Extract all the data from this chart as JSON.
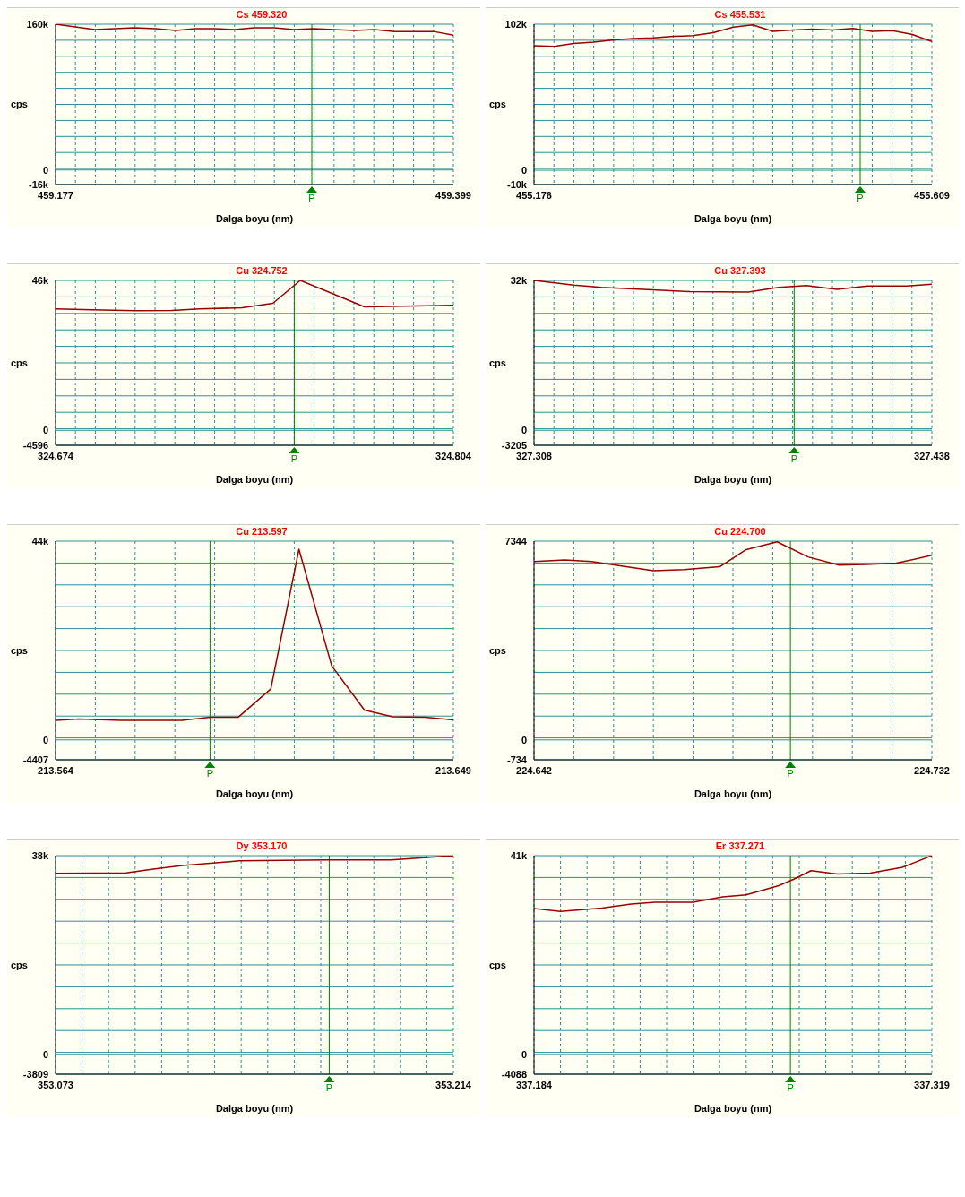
{
  "chart_data": [
    {
      "type": "line",
      "title": "Cs 459.320",
      "xlabel": "Dalga boyu (nm)",
      "ylabel": "cps",
      "color": "#990000",
      "grid": true,
      "x": [
        459.177,
        459.188,
        459.199,
        459.21,
        459.221,
        459.233,
        459.244,
        459.255,
        459.266,
        459.277,
        459.288,
        459.299,
        459.31,
        459.321,
        459.332,
        459.344,
        459.355,
        459.366,
        459.377,
        459.388,
        459.399
      ],
      "values": [
        160000,
        157000,
        154000,
        155000,
        156000,
        155000,
        153000,
        155000,
        155000,
        154000,
        156000,
        156000,
        154000,
        155000,
        154000,
        153000,
        154000,
        152000,
        152000,
        152000,
        148000
      ],
      "xlim": [
        459.177,
        459.399
      ],
      "xticks": [
        459.177,
        {
          "value": 459.1881,
          "label": null
        },
        {
          "value": 459.1992,
          "label": null
        },
        {
          "value": 459.2103,
          "label": null
        },
        {
          "value": 459.2214,
          "label": null
        },
        {
          "value": 459.2325,
          "label": null
        },
        {
          "value": 459.2436,
          "label": null
        },
        {
          "value": 459.2547,
          "label": null
        },
        {
          "value": 459.2658,
          "label": null
        },
        {
          "value": 459.2769,
          "label": null
        },
        {
          "value": 459.288,
          "label": null
        },
        {
          "value": 459.2991,
          "label": null
        },
        {
          "value": 459.3102,
          "label": null
        },
        {
          "value": 459.3213,
          "label": null
        },
        {
          "value": 459.3324,
          "label": null
        },
        {
          "value": 459.3435,
          "label": null
        },
        {
          "value": 459.3546,
          "label": null
        },
        {
          "value": 459.3657,
          "label": null
        },
        {
          "value": 459.3768,
          "label": null
        },
        {
          "value": 459.3879,
          "label": null
        },
        459.399
      ],
      "ylim": [
        -16000,
        160000
      ],
      "yticks": [
        {
          "value": -16000,
          "label": "-16k"
        },
        0,
        {
          "value": 1600,
          "label": null
        },
        {
          "value": 19200,
          "label": null
        },
        {
          "value": 36800,
          "label": null
        },
        {
          "value": 54400,
          "label": null
        },
        {
          "value": 72000,
          "label": null
        },
        {
          "value": 89600,
          "label": null
        },
        {
          "value": 107200,
          "label": null
        },
        {
          "value": 124800,
          "label": null
        },
        {
          "value": 142400,
          "label": null
        },
        {
          "value": 160000,
          "label": "160k"
        }
      ],
      "ref_lines": [
        {
          "axis": "x",
          "value": 459.32,
          "label": "P",
          "color": "#008000"
        }
      ]
    },
    {
      "type": "line",
      "title": "Cs 455.531",
      "xlabel": "Dalga boyu (nm)",
      "ylabel": "cps",
      "color": "#990000",
      "grid": true,
      "x": [
        455.176,
        455.198,
        455.219,
        455.241,
        455.263,
        455.284,
        455.306,
        455.328,
        455.349,
        455.371,
        455.393,
        455.414,
        455.436,
        455.458,
        455.479,
        455.501,
        455.523,
        455.544,
        455.566,
        455.587,
        455.609
      ],
      "values": [
        87000,
        86500,
        88500,
        89500,
        91000,
        92000,
        92500,
        93500,
        94000,
        96000,
        100000,
        101500,
        97000,
        98000,
        98500,
        98000,
        99000,
        97000,
        97500,
        95000,
        90000
      ],
      "xlim": [
        455.176,
        455.609
      ],
      "xticks": [
        455.176,
        {
          "value": 455.1977,
          "label": null
        },
        {
          "value": 455.2193,
          "label": null
        },
        {
          "value": 455.241,
          "label": null
        },
        {
          "value": 455.2626,
          "label": null
        },
        {
          "value": 455.2843,
          "label": null
        },
        {
          "value": 455.3059,
          "label": null
        },
        {
          "value": 455.3276,
          "label": null
        },
        {
          "value": 455.3492,
          "label": null
        },
        {
          "value": 455.3709,
          "label": null
        },
        {
          "value": 455.3925,
          "label": null
        },
        {
          "value": 455.4142,
          "label": null
        },
        {
          "value": 455.4358,
          "label": null
        },
        {
          "value": 455.4575,
          "label": null
        },
        {
          "value": 455.4791,
          "label": null
        },
        {
          "value": 455.5008,
          "label": null
        },
        {
          "value": 455.5224,
          "label": null
        },
        {
          "value": 455.5441,
          "label": null
        },
        {
          "value": 455.5657,
          "label": null
        },
        {
          "value": 455.5874,
          "label": null
        },
        455.609
      ],
      "ylim": [
        -10000,
        102000
      ],
      "yticks": [
        {
          "value": -10000,
          "label": "-10k"
        },
        0,
        {
          "value": 1200,
          "label": null
        },
        {
          "value": 12400,
          "label": null
        },
        {
          "value": 23600,
          "label": null
        },
        {
          "value": 34800,
          "label": null
        },
        {
          "value": 46000,
          "label": null
        },
        {
          "value": 57200,
          "label": null
        },
        {
          "value": 68400,
          "label": null
        },
        {
          "value": 79600,
          "label": null
        },
        {
          "value": 90800,
          "label": null
        },
        {
          "value": 102000,
          "label": "102k"
        }
      ],
      "ref_lines": [
        {
          "axis": "x",
          "value": 455.531,
          "label": "P",
          "color": "#008000"
        }
      ]
    },
    {
      "type": "line",
      "title": "Cu 324.752",
      "xlabel": "Dalga boyu (nm)",
      "ylabel": "cps",
      "color": "#990000",
      "grid": true,
      "x": [
        324.674,
        324.686,
        324.7,
        324.712,
        324.721,
        324.735,
        324.745,
        324.754,
        324.775,
        324.804
      ],
      "values": [
        37300,
        37000,
        36700,
        36800,
        37300,
        37600,
        39000,
        46000,
        37900,
        38400
      ],
      "xlim": [
        324.674,
        324.804
      ],
      "xticks": [
        324.674,
        {
          "value": 324.6805,
          "label": null
        },
        {
          "value": 324.687,
          "label": null
        },
        {
          "value": 324.6935,
          "label": null
        },
        {
          "value": 324.7,
          "label": null
        },
        {
          "value": 324.7065,
          "label": null
        },
        {
          "value": 324.713,
          "label": null
        },
        {
          "value": 324.7195,
          "label": null
        },
        {
          "value": 324.726,
          "label": null
        },
        {
          "value": 324.7325,
          "label": null
        },
        {
          "value": 324.739,
          "label": null
        },
        {
          "value": 324.7455,
          "label": null
        },
        {
          "value": 324.752,
          "label": null
        },
        {
          "value": 324.7585,
          "label": null
        },
        {
          "value": 324.765,
          "label": null
        },
        {
          "value": 324.7715,
          "label": null
        },
        {
          "value": 324.778,
          "label": null
        },
        {
          "value": 324.7845,
          "label": null
        },
        {
          "value": 324.791,
          "label": null
        },
        {
          "value": 324.7975,
          "label": null
        },
        324.804
      ],
      "ylim": [
        -4596,
        46000
      ],
      "yticks": [
        -4596,
        0,
        {
          "value": 464,
          "label": null
        },
        {
          "value": 5523,
          "label": null
        },
        {
          "value": 10583,
          "label": null
        },
        {
          "value": 15643,
          "label": null
        },
        {
          "value": 20702,
          "label": null
        },
        {
          "value": 25762,
          "label": null
        },
        {
          "value": 30821,
          "label": null
        },
        {
          "value": 35881,
          "label": null
        },
        {
          "value": 40941,
          "label": null
        },
        {
          "value": 46000,
          "label": "46k"
        }
      ],
      "ref_lines": [
        {
          "axis": "x",
          "value": 324.752,
          "label": "P",
          "color": "#008000"
        }
      ]
    },
    {
      "type": "line",
      "title": "Cu 327.393",
      "xlabel": "Dalga boyu (nm)",
      "ylabel": "cps",
      "color": "#990000",
      "grid": true,
      "x": [
        327.308,
        327.321,
        327.33,
        327.359,
        327.378,
        327.388,
        327.397,
        327.407,
        327.417,
        327.43,
        327.438
      ],
      "values": [
        32000,
        31000,
        30500,
        29600,
        29500,
        30500,
        30900,
        30100,
        30800,
        30800,
        31200
      ],
      "xlim": [
        327.308,
        327.438
      ],
      "xticks": [
        327.308,
        {
          "value": 327.3145,
          "label": null
        },
        {
          "value": 327.321,
          "label": null
        },
        {
          "value": 327.3275,
          "label": null
        },
        {
          "value": 327.334,
          "label": null
        },
        {
          "value": 327.3405,
          "label": null
        },
        {
          "value": 327.347,
          "label": null
        },
        {
          "value": 327.3535,
          "label": null
        },
        {
          "value": 327.36,
          "label": null
        },
        {
          "value": 327.3665,
          "label": null
        },
        {
          "value": 327.373,
          "label": null
        },
        {
          "value": 327.3795,
          "label": null
        },
        {
          "value": 327.386,
          "label": null
        },
        {
          "value": 327.3925,
          "label": null
        },
        {
          "value": 327.399,
          "label": null
        },
        {
          "value": 327.4055,
          "label": null
        },
        {
          "value": 327.412,
          "label": null
        },
        {
          "value": 327.4185,
          "label": null
        },
        {
          "value": 327.425,
          "label": null
        },
        {
          "value": 327.4315,
          "label": null
        },
        327.438
      ],
      "ylim": [
        -3205,
        32000
      ],
      "yticks": [
        -3205,
        0,
        {
          "value": 316,
          "label": null
        },
        {
          "value": 3836,
          "label": null
        },
        {
          "value": 7357,
          "label": null
        },
        {
          "value": 10877,
          "label": null
        },
        {
          "value": 14398,
          "label": null
        },
        {
          "value": 17918,
          "label": null
        },
        {
          "value": 21439,
          "label": null
        },
        {
          "value": 24960,
          "label": null
        },
        {
          "value": 28480,
          "label": null
        },
        {
          "value": 32000,
          "label": "32k"
        }
      ],
      "ref_lines": [
        {
          "axis": "x",
          "value": 327.393,
          "label": "P",
          "color": "#008000"
        }
      ]
    },
    {
      "type": "line",
      "title": "Cu 213.597",
      "xlabel": "Dalga boyu (nm)",
      "ylabel": "cps",
      "color": "#990000",
      "grid": true,
      "x": [
        213.564,
        213.569,
        213.578,
        213.591,
        213.597,
        213.603,
        213.61,
        213.616,
        213.623,
        213.63,
        213.636,
        213.643,
        213.649
      ],
      "values": [
        4300,
        4600,
        4300,
        4300,
        5000,
        5000,
        11300,
        42200,
        16400,
        6600,
        5100,
        5000,
        4400
      ],
      "xlim": [
        213.564,
        213.649
      ],
      "xticks": [
        213.564,
        {
          "value": 213.5725,
          "label": null
        },
        {
          "value": 213.581,
          "label": null
        },
        {
          "value": 213.5895,
          "label": null
        },
        {
          "value": 213.598,
          "label": null
        },
        {
          "value": 213.6065,
          "label": null
        },
        {
          "value": 213.615,
          "label": null
        },
        {
          "value": 213.6235,
          "label": null
        },
        {
          "value": 213.632,
          "label": null
        },
        {
          "value": 213.6405,
          "label": null
        },
        213.649
      ],
      "ylim": [
        -4407,
        44000
      ],
      "yticks": [
        -4407,
        0,
        {
          "value": 434,
          "label": null
        },
        {
          "value": 5274,
          "label": null
        },
        {
          "value": 10115,
          "label": null
        },
        {
          "value": 14956,
          "label": null
        },
        {
          "value": 19796,
          "label": null
        },
        {
          "value": 24637,
          "label": null
        },
        {
          "value": 29478,
          "label": null
        },
        {
          "value": 34318,
          "label": null
        },
        {
          "value": 39159,
          "label": null
        },
        {
          "value": 44000,
          "label": "44k"
        }
      ],
      "ref_lines": [
        {
          "axis": "x",
          "value": 213.597,
          "label": "P",
          "color": "#008000"
        }
      ]
    },
    {
      "type": "line",
      "title": "Cu 224.700",
      "xlabel": "Dalga boyu (nm)",
      "ylabel": "cps",
      "color": "#990000",
      "grid": true,
      "x": [
        224.642,
        224.649,
        224.655,
        224.669,
        224.676,
        224.684,
        224.69,
        224.697,
        224.704,
        224.711,
        224.717,
        224.724,
        224.732
      ],
      "values": [
        6590,
        6650,
        6590,
        6250,
        6290,
        6400,
        7030,
        7320,
        6760,
        6460,
        6480,
        6530,
        6820
      ],
      "xlim": [
        224.642,
        224.732
      ],
      "xticks": [
        224.642,
        {
          "value": 224.651,
          "label": null
        },
        {
          "value": 224.66,
          "label": null
        },
        {
          "value": 224.669,
          "label": null
        },
        {
          "value": 224.678,
          "label": null
        },
        {
          "value": 224.687,
          "label": null
        },
        {
          "value": 224.696,
          "label": null
        },
        {
          "value": 224.705,
          "label": null
        },
        {
          "value": 224.714,
          "label": null
        },
        {
          "value": 224.723,
          "label": null
        },
        224.732
      ],
      "ylim": [
        -734,
        7344
      ],
      "yticks": [
        -734,
        0,
        {
          "value": 74,
          "label": null
        },
        {
          "value": 882,
          "label": null
        },
        {
          "value": 1689,
          "label": null
        },
        {
          "value": 2497,
          "label": null
        },
        {
          "value": 3305,
          "label": null
        },
        {
          "value": 4113,
          "label": null
        },
        {
          "value": 4921,
          "label": null
        },
        {
          "value": 5728,
          "label": null
        },
        {
          "value": 6536,
          "label": null
        },
        7344
      ],
      "ref_lines": [
        {
          "axis": "x",
          "value": 224.7,
          "label": "P",
          "color": "#008000"
        }
      ]
    },
    {
      "type": "line",
      "title": "Dy 353.170",
      "xlabel": "Dalga boyu (nm)",
      "ylabel": "cps",
      "color": "#990000",
      "grid": true,
      "x": [
        353.073,
        353.098,
        353.107,
        353.118,
        353.138,
        353.169,
        353.192,
        353.214
      ],
      "values": [
        34600,
        34700,
        35400,
        36100,
        37000,
        37200,
        37200,
        38000
      ],
      "xlim": [
        353.073,
        353.214
      ],
      "xticks": [
        353.073,
        {
          "value": 353.0824,
          "label": null
        },
        {
          "value": 353.0918,
          "label": null
        },
        {
          "value": 353.1012,
          "label": null
        },
        {
          "value": 353.1106,
          "label": null
        },
        {
          "value": 353.12,
          "label": null
        },
        {
          "value": 353.1294,
          "label": null
        },
        {
          "value": 353.1388,
          "label": null
        },
        {
          "value": 353.1482,
          "label": null
        },
        {
          "value": 353.1576,
          "label": null
        },
        {
          "value": 353.167,
          "label": null
        },
        {
          "value": 353.1764,
          "label": null
        },
        {
          "value": 353.1858,
          "label": null
        },
        {
          "value": 353.1952,
          "label": null
        },
        {
          "value": 353.2046,
          "label": null
        },
        353.214
      ],
      "ylim": [
        -3809,
        38000
      ],
      "yticks": [
        -3809,
        0,
        {
          "value": 372,
          "label": null
        },
        {
          "value": 4553,
          "label": null
        },
        {
          "value": 8734,
          "label": null
        },
        {
          "value": 12915,
          "label": null
        },
        {
          "value": 17096,
          "label": null
        },
        {
          "value": 21277,
          "label": null
        },
        {
          "value": 25458,
          "label": null
        },
        {
          "value": 29639,
          "label": null
        },
        {
          "value": 33819,
          "label": null
        },
        {
          "value": 38000,
          "label": "38k"
        }
      ],
      "ref_lines": [
        {
          "axis": "x",
          "value": 353.17,
          "label": "P",
          "color": "#008000"
        }
      ]
    },
    {
      "type": "line",
      "title": "Er 337.271",
      "xlabel": "Dalga boyu (nm)",
      "ylabel": "cps",
      "color": "#990000",
      "grid": true,
      "x": [
        337.184,
        337.193,
        337.207,
        337.217,
        337.225,
        337.238,
        337.248,
        337.256,
        337.267,
        337.272,
        337.278,
        337.287,
        337.298,
        337.309,
        337.319
      ],
      "values": [
        30100,
        29500,
        30200,
        31000,
        31400,
        31400,
        32500,
        32900,
        34800,
        36100,
        37900,
        37200,
        37400,
        38600,
        41000
      ],
      "xlim": [
        337.184,
        337.319
      ],
      "xticks": [
        337.184,
        {
          "value": 337.193,
          "label": null
        },
        {
          "value": 337.202,
          "label": null
        },
        {
          "value": 337.211,
          "label": null
        },
        {
          "value": 337.22,
          "label": null
        },
        {
          "value": 337.229,
          "label": null
        },
        {
          "value": 337.238,
          "label": null
        },
        {
          "value": 337.247,
          "label": null
        },
        {
          "value": 337.256,
          "label": null
        },
        {
          "value": 337.265,
          "label": null
        },
        {
          "value": 337.274,
          "label": null
        },
        {
          "value": 337.283,
          "label": null
        },
        {
          "value": 337.292,
          "label": null
        },
        {
          "value": 337.301,
          "label": null
        },
        {
          "value": 337.31,
          "label": null
        },
        337.319
      ],
      "ylim": [
        -4088,
        41000
      ],
      "yticks": [
        -4088,
        0,
        {
          "value": 421,
          "label": null
        },
        {
          "value": 4930,
          "label": null
        },
        {
          "value": 9438,
          "label": null
        },
        {
          "value": 13947,
          "label": null
        },
        {
          "value": 18456,
          "label": null
        },
        {
          "value": 22965,
          "label": null
        },
        {
          "value": 27474,
          "label": null
        },
        {
          "value": 31982,
          "label": null
        },
        {
          "value": 36491,
          "label": null
        },
        {
          "value": 41000,
          "label": "41k"
        }
      ],
      "ref_lines": [
        {
          "axis": "x",
          "value": 337.271,
          "label": "P",
          "color": "#008000"
        }
      ]
    }
  ]
}
